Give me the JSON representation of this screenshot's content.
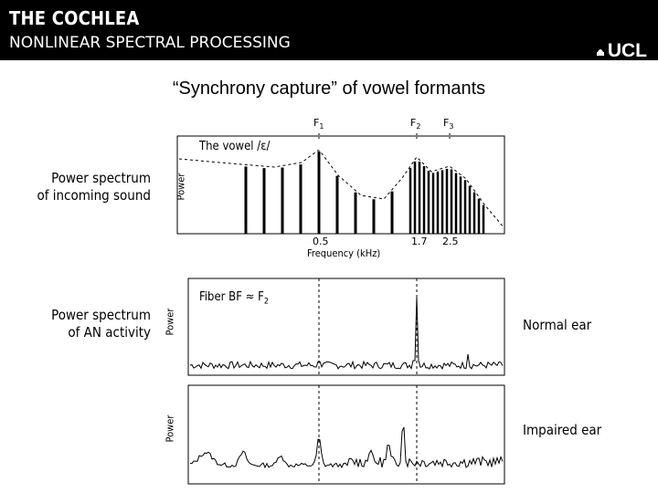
{
  "header": {
    "title": "THE COCHLEA",
    "subtitle": "NONLINEAR SPECTRAL PROCESSING",
    "logo_text": "UCL"
  },
  "slide_title": "“Synchrony capture” of vowel formants",
  "labels": {
    "incoming_line1": "Power spectrum",
    "incoming_line2": "of incoming sound",
    "an_line1": "Power spectrum",
    "an_line2": "of AN activity",
    "normal_ear": "Normal ear",
    "impaired_ear": "Impaired ear"
  },
  "top_panel": {
    "formants": [
      {
        "name": "F",
        "sub": "1"
      },
      {
        "name": "F",
        "sub": "2"
      },
      {
        "name": "F",
        "sub": "3"
      }
    ],
    "vowel_label": "The vowel /ε/",
    "ylabel": "Power",
    "xlabel": "Frequency (kHz)",
    "ticks": [
      "0.5",
      "1.7",
      "2.5"
    ]
  },
  "middle_panel": {
    "ylabel": "Power",
    "fiber_label": "Fiber BF ≈ F",
    "fiber_sub": "2"
  },
  "bottom_panel": {
    "ylabel": "Power"
  },
  "chart_data": [
    {
      "type": "bar",
      "title": "The vowel /ε/",
      "ylabel": "Power",
      "xlabel": "Frequency (kHz)",
      "x_ticks": [
        0.5,
        1.7,
        2.5
      ],
      "harmonic_spacing_khz": 0.1,
      "annotations": [
        "F1",
        "F2",
        "F3"
      ],
      "formant_khz": {
        "F1": 0.5,
        "F2": 1.7,
        "F3": 2.5
      }
    },
    {
      "type": "line",
      "ylabel": "Power",
      "annotations": [
        "Fiber BF ≈ F2",
        "Normal ear"
      ]
    },
    {
      "type": "line",
      "ylabel": "Power",
      "annotations": [
        "Impaired ear"
      ]
    }
  ]
}
